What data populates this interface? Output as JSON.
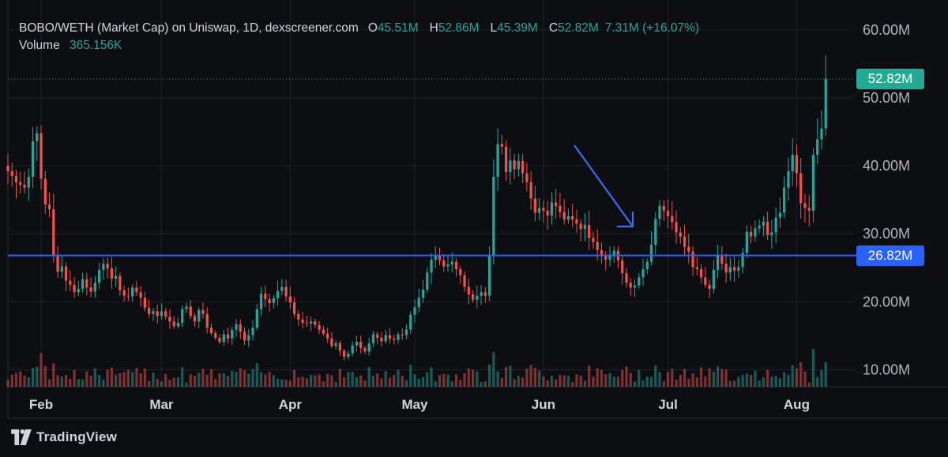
{
  "legend": {
    "title": "BOBO/WETH (Market Cap) on Uniswap, 1D, dexscreener.com",
    "o_label": "O",
    "o_value": "45.51M",
    "h_label": "H",
    "h_value": "52.86M",
    "l_label": "L",
    "l_value": "45.39M",
    "c_label": "C",
    "c_value": "52.82M",
    "change": "7.31M (+16.07%)",
    "volume_label": "Volume",
    "volume_value": "365.156K"
  },
  "branding": {
    "name": "TradingView",
    "logo_icon": "tradingview-logo-icon"
  },
  "colors": {
    "background": "#0d0e12",
    "up": "#26a69a",
    "down": "#ef5350",
    "drawing": "#2962ff",
    "text": "#d1d4dc"
  },
  "badges": {
    "last_price": "52.82M",
    "level": "26.82M"
  },
  "chart_data": {
    "type": "candlestick",
    "title": "BOBO/WETH (Market Cap) on Uniswap, 1D, dexscreener.com",
    "y_axis": {
      "ticks": [
        10,
        20,
        30,
        40,
        50,
        60
      ],
      "tick_labels": [
        "10.00M",
        "20.00M",
        "30.00M",
        "40.00M",
        "50.00M",
        "60.00M"
      ],
      "range": [
        7.5,
        63
      ]
    },
    "x_axis": {
      "tick_labels": [
        "Feb",
        "Mar",
        "Apr",
        "May",
        "Jun",
        "Jul",
        "Aug"
      ],
      "tick_dates": [
        "2024-02-01",
        "2024-03-01",
        "2024-04-01",
        "2024-05-01",
        "2024-06-01",
        "2024-07-01",
        "2024-08-01"
      ],
      "range": [
        "2024-01-24",
        "2024-08-15"
      ]
    },
    "first_date": "2024-01-24",
    "series_close": [
      39.2,
      38.5,
      37.6,
      37.2,
      36.8,
      38.4,
      43.6,
      44.8,
      38.1,
      34.3,
      33.6,
      26.9,
      24.4,
      25.2,
      23.1,
      22.5,
      21.4,
      21.9,
      23.3,
      22.1,
      21.5,
      22.8,
      24.7,
      25.6,
      24.9,
      23.4,
      23.8,
      21.7,
      20.9,
      20.8,
      22.1,
      21.4,
      20.6,
      19.1,
      18.2,
      18.6,
      17.9,
      18.6,
      17.8,
      17.1,
      16.4,
      16.9,
      18.9,
      19.3,
      17.9,
      17.1,
      18.8,
      18.2,
      16.2,
      15.4,
      14.7,
      14.1,
      15.2,
      14.6,
      15.9,
      16.7,
      15.6,
      14.3,
      15.1,
      16.2,
      18.9,
      21.2,
      20.4,
      19.8,
      20.5,
      21.6,
      22.2,
      20.8,
      19.9,
      18.2,
      17.4,
      16.9,
      16.8,
      17.1,
      16.6,
      15.9,
      15.3,
      14.6,
      13.5,
      13.9,
      12.8,
      11.9,
      12.4,
      13.6,
      14.1,
      13.2,
      12.7,
      13.9,
      15.2,
      14.7,
      14.2,
      15.1,
      14.6,
      14.4,
      15.2,
      15.1,
      15.9,
      18.1,
      19.2,
      20.6,
      21.8,
      24.3,
      26.2,
      26.8,
      26.1,
      25.2,
      25.5,
      25.9,
      24.8,
      23.9,
      22.2,
      21.1,
      20.3,
      20.9,
      21.4,
      20.9,
      26.8,
      38.4,
      43.2,
      42.8,
      39.1,
      40.8,
      39.5,
      40.7,
      38.9,
      37.6,
      35.2,
      33.1,
      33.8,
      33.4,
      32.7,
      34.6,
      34.1,
      33.2,
      32.1,
      32.6,
      32.1,
      31.5,
      30.7,
      31.3,
      29.4,
      28.8,
      27.6,
      26.7,
      26.2,
      26.9,
      27.5,
      26.1,
      24.2,
      22.8,
      22.1,
      22.4,
      23.6,
      24.8,
      25.9,
      28.4,
      32.2,
      34.1,
      33.4,
      32.6,
      31.7,
      30.2,
      29.6,
      28.1,
      27.4,
      25.1,
      24.8,
      23.6,
      22.5,
      21.9,
      24.7,
      26.9,
      25.6,
      24.3,
      25.1,
      24.6,
      25.1,
      27.2,
      30.3,
      29.6,
      30.8,
      31.2,
      31.8,
      29.8,
      30.2,
      32.4,
      33.1,
      36.8,
      39.2,
      41.6,
      38.9,
      34.5,
      33.8,
      33.4,
      41.6,
      43.9,
      45.5,
      52.8
    ]
  }
}
